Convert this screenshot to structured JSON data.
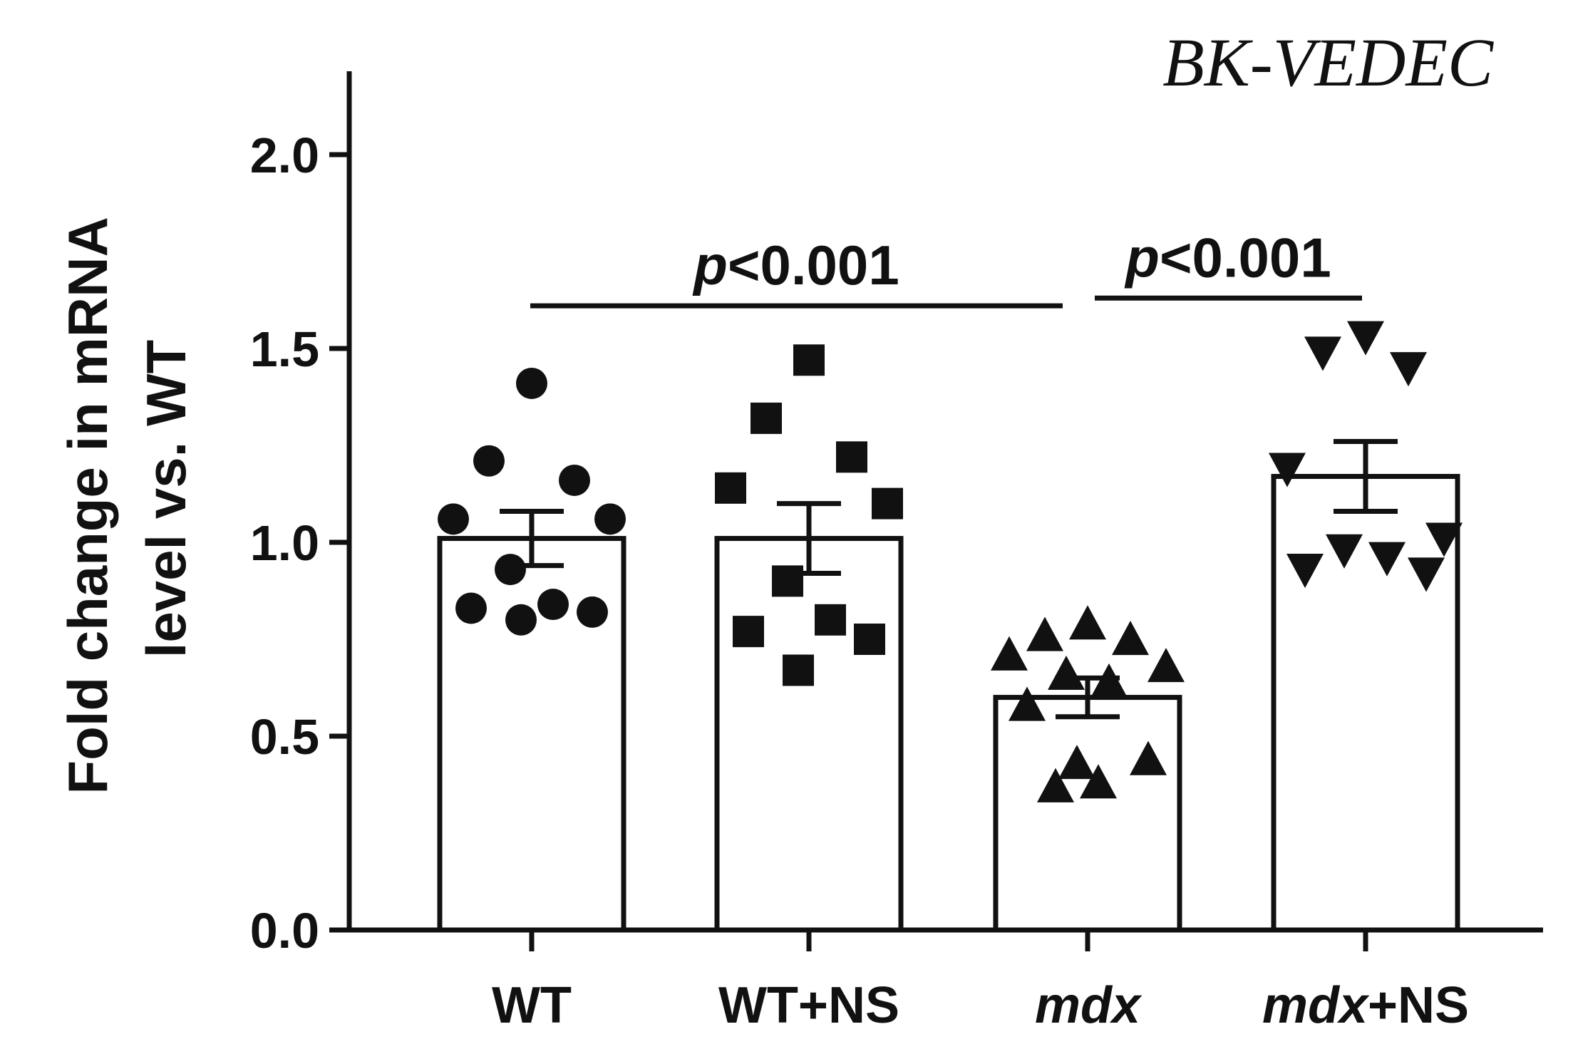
{
  "chart_data": {
    "type": "bar",
    "title": "BK-VEDEC",
    "ylabel_lines": [
      "Fold change in mRNA",
      "level vs. WT"
    ],
    "xlabel": "",
    "ylim": [
      0,
      2.2
    ],
    "yticks": [
      0.0,
      0.5,
      1.0,
      1.5,
      2.0
    ],
    "ytick_labels": [
      "0.0",
      "0.5",
      "1.0",
      "1.5",
      "2.0"
    ],
    "categories": [
      {
        "label_italic": "",
        "label_plain": "WT"
      },
      {
        "label_italic": "",
        "label_plain": "WT+NS"
      },
      {
        "label_italic": "mdx",
        "label_plain": ""
      },
      {
        "label_italic": "mdx",
        "label_plain": "+NS"
      }
    ],
    "means": [
      1.01,
      1.01,
      0.6,
      1.17
    ],
    "sem": [
      0.07,
      0.09,
      0.05,
      0.09
    ],
    "points": [
      [
        1.41,
        1.21,
        1.16,
        1.06,
        1.06,
        0.93,
        0.84,
        0.83,
        0.82,
        0.8
      ],
      [
        1.47,
        1.32,
        1.22,
        1.14,
        1.1,
        0.9,
        0.8,
        0.77,
        0.75,
        0.67
      ],
      [
        0.79,
        0.76,
        0.75,
        0.71,
        0.68,
        0.66,
        0.64,
        0.58,
        0.44,
        0.43,
        0.38,
        0.37
      ],
      [
        1.53,
        1.49,
        1.45,
        1.19,
        1.01,
        0.98,
        0.96,
        0.93,
        0.92
      ]
    ],
    "markers": [
      "circle",
      "square",
      "triangle-up",
      "triangle-down"
    ],
    "significance": [
      {
        "from": 0,
        "to": 2,
        "y": 1.61,
        "p_symbol": "p",
        "p_text": "<0.001"
      },
      {
        "from": 2,
        "to": 3,
        "y": 1.63,
        "p_symbol": "p",
        "p_text": "<0.001"
      }
    ],
    "colors": {
      "stroke": "#111111",
      "bar_fill": "#ffffff",
      "marker": "#111111"
    }
  }
}
